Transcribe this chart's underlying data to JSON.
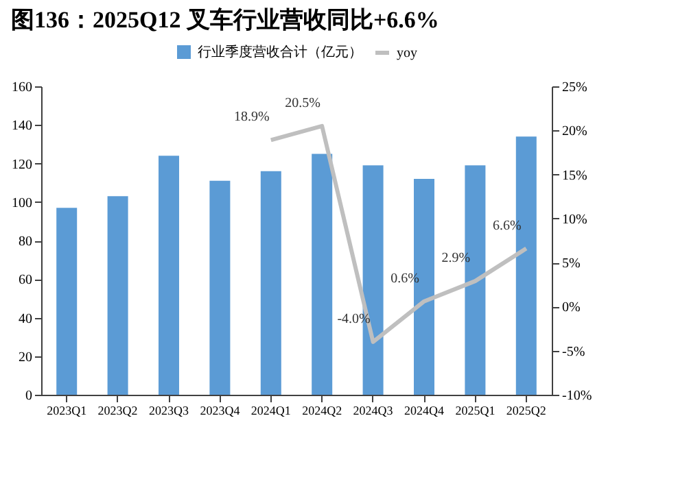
{
  "chart_data": {
    "type": "bar",
    "title": "图136：2025Q12 叉车行业营收同比+6.6%",
    "categories": [
      "2023Q1",
      "2023Q2",
      "2023Q3",
      "2023Q4",
      "2024Q1",
      "2024Q2",
      "2024Q3",
      "2024Q4",
      "2025Q1",
      "2025Q2"
    ],
    "series": [
      {
        "name": "行业季度营收合计（亿元）",
        "color": "#5b9bd5",
        "values": [
          97,
          103,
          124,
          111,
          116,
          125,
          119,
          112,
          119,
          134
        ]
      },
      {
        "name": "yoy",
        "type": "line",
        "axis": "y2",
        "color": "#bfbfbf",
        "values": [
          null,
          null,
          null,
          null,
          18.9,
          20.5,
          -4.0,
          0.6,
          2.9,
          6.6
        ],
        "value_labels": [
          null,
          null,
          null,
          null,
          "18.9%",
          "20.5%",
          "-4.0%",
          "0.6%",
          "2.9%",
          "6.6%"
        ]
      }
    ],
    "ylim": [
      0,
      160
    ],
    "yticks": [
      0,
      20,
      40,
      60,
      80,
      100,
      120,
      140,
      160
    ],
    "y2lim": [
      -10,
      25
    ],
    "y2ticks": [
      {
        "value": -10,
        "label": "-10%"
      },
      {
        "value": -5,
        "label": "-5%"
      },
      {
        "value": 0,
        "label": "0%"
      },
      {
        "value": 5,
        "label": "5%"
      },
      {
        "value": 10,
        "label": "10%"
      },
      {
        "value": 15,
        "label": "15%"
      },
      {
        "value": 20,
        "label": "20%"
      },
      {
        "value": 25,
        "label": "25%"
      }
    ],
    "legend": "top",
    "grid": false
  }
}
